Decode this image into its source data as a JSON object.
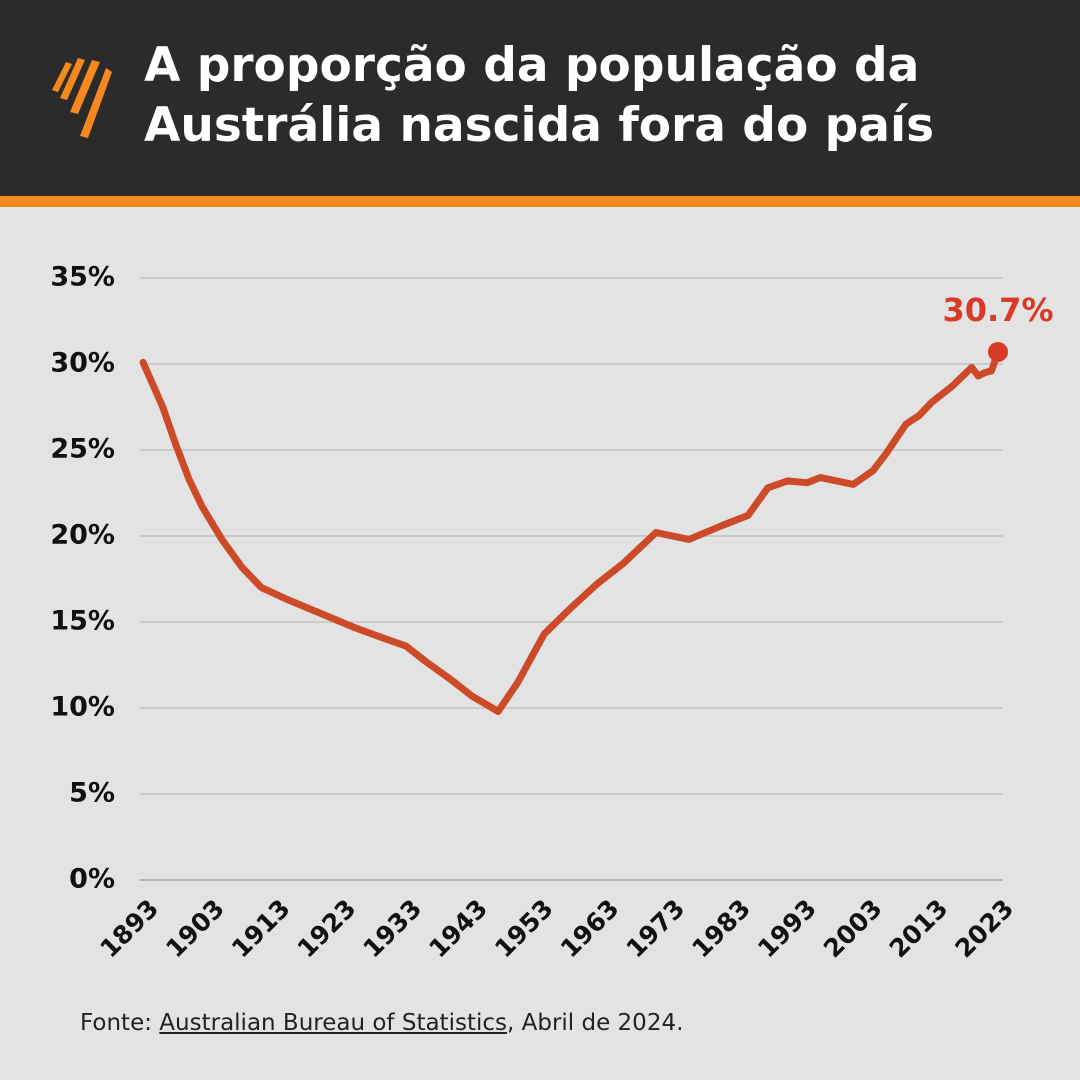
{
  "chart_data": {
    "type": "line",
    "title": "A proporção da população da Austrália nascida fora do país",
    "x": [
      1893,
      1896,
      1898,
      1900,
      1902,
      1905,
      1908,
      1911,
      1915,
      1920,
      1925,
      1930,
      1933,
      1936,
      1940,
      1943,
      1947,
      1950,
      1954,
      1958,
      1962,
      1966,
      1971,
      1976,
      1981,
      1985,
      1988,
      1991,
      1994,
      1996,
      2001,
      2004,
      2006,
      2009,
      2011,
      2013,
      2016,
      2019,
      2020,
      2021,
      2022,
      2023
    ],
    "series": [
      {
        "name": "População nascida fora do país",
        "color": "#cc4a27",
        "values": [
          30.1,
          27.5,
          25.3,
          23.3,
          21.7,
          19.8,
          18.2,
          17.0,
          16.3,
          15.5,
          14.7,
          14.0,
          13.6,
          12.7,
          11.6,
          10.7,
          9.8,
          11.5,
          14.3,
          15.8,
          17.2,
          18.4,
          20.2,
          19.8,
          20.6,
          21.2,
          22.8,
          23.2,
          23.1,
          23.4,
          23.0,
          23.8,
          24.8,
          26.5,
          27.0,
          27.8,
          28.7,
          29.8,
          29.3,
          29.5,
          29.6,
          30.7
        ]
      }
    ],
    "annotations": [
      {
        "x": 2023,
        "y": 30.7,
        "label": "30.7%",
        "color": "#d93a26"
      }
    ],
    "xlim": [
      1893,
      2023
    ],
    "xticks": [
      1893,
      1903,
      1913,
      1923,
      1933,
      1943,
      1953,
      1963,
      1973,
      1983,
      1993,
      2003,
      2013,
      2023
    ],
    "ylim": [
      0,
      35
    ],
    "yticks": [
      {
        "value": 0,
        "label": "0%"
      },
      {
        "value": 5,
        "label": "5%"
      },
      {
        "value": 10,
        "label": "10%"
      },
      {
        "value": 15,
        "label": "15%"
      },
      {
        "value": 20,
        "label": "20%"
      },
      {
        "value": 25,
        "label": "25%"
      },
      {
        "value": 30,
        "label": "30%"
      },
      {
        "value": 35,
        "label": "35%"
      }
    ],
    "grid": true
  },
  "source": {
    "prefix": "Fonte:",
    "link": "Australian Bureau of Statistics",
    "suffix": ", Abril de 2024."
  }
}
